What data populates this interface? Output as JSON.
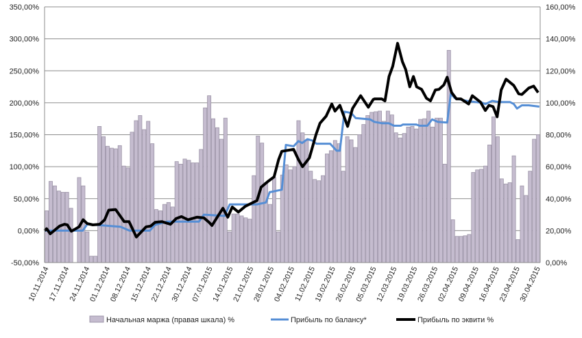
{
  "chart_data": {
    "type": "bar+line",
    "title": "",
    "grid": true,
    "legend_position": "bottom",
    "left_axis": {
      "min": -50,
      "max": 350,
      "step": 50,
      "ticks": [
        "-50,00%",
        "0,00%",
        "50,00%",
        "100,00%",
        "150,00%",
        "200,00%",
        "250,00%",
        "300,00%",
        "350,00%"
      ]
    },
    "right_axis": {
      "min": 0,
      "max": 160,
      "step": 20,
      "ticks": [
        "0,00%",
        "20,00%",
        "40,00%",
        "60,00%",
        "80,00%",
        "100,00%",
        "120,00%",
        "140,00%",
        "160,00%"
      ]
    },
    "x_tick_labels": [
      "10.11.2014",
      "17.11.2014",
      "24.11.2014",
      "01.12.2014",
      "08.12.2014",
      "15.12.2014",
      "22.12.2014",
      "30.12.2014",
      "07.01.2015",
      "14.01.2015",
      "21.01.2015",
      "28.01.2015",
      "04.02.2015",
      "11.02.2015",
      "19.02.2015",
      "26.02.2015",
      "05.03.2015",
      "12.03.2015",
      "19.03.2015",
      "26.03.2015",
      "02.04.2015",
      "09.04.2015",
      "16.04.2015",
      "23.04.2015",
      "30.04.2015"
    ],
    "series": [
      {
        "name": "Начальная маржа (правая шкала) %",
        "type": "bar",
        "axis": "right",
        "color": "#c5bccf",
        "values": [
          32.4,
          50.8,
          48,
          44.8,
          44,
          44,
          34,
          0,
          53.2,
          48,
          19.2,
          4,
          4,
          85.2,
          78.8,
          72.8,
          71.6,
          71.2,
          73.2,
          60.4,
          59.2,
          81.6,
          88.8,
          92,
          83.2,
          88.4,
          74.4,
          33.2,
          32.4,
          36.4,
          37.6,
          34.8,
          63.2,
          61.6,
          64.8,
          64,
          62.4,
          62.4,
          70.8,
          96.8,
          104.4,
          90,
          84.4,
          77.2,
          90.4,
          19.2,
          30.4,
          30.4,
          29.2,
          28,
          27.2,
          54.4,
          79.2,
          74.8,
          50,
          36.4,
          53.2,
          19.2,
          54.8,
          61.2,
          58,
          60,
          88.8,
          81.2,
          76.4,
          57.2,
          52,
          51.2,
          54.4,
          68,
          70,
          76.4,
          74.4,
          57.2,
          78.8,
          76.8,
          72,
          80,
          86.4,
          92,
          94,
          94.4,
          94.8,
          88.4,
          94.8,
          92.4,
          81.2,
          78,
          80.8,
          84.8,
          85.2,
          83.6,
          89.6,
          90,
          94.8,
          84.8,
          90.4,
          90.4,
          61.6,
          132.8,
          26.8,
          16.4,
          16.4,
          16.8,
          17.6,
          56.4,
          58,
          58.4,
          60.4,
          73.6,
          91.2,
          78.8,
          52.4,
          49.2,
          50,
          66.8,
          14.4,
          48,
          42,
          57.2,
          77.2,
          80
        ]
      },
      {
        "name": "Прибыль по балансу*",
        "type": "line",
        "axis": "left",
        "color": "#558ed5",
        "points": [
          [
            -0.5,
            0
          ],
          [
            8.9,
            0
          ],
          [
            10,
            10
          ],
          [
            18.2,
            6
          ],
          [
            20.4,
            0
          ],
          [
            25.4,
            0
          ],
          [
            26.7,
            9
          ],
          [
            29.6,
            14
          ],
          [
            37.5,
            14
          ],
          [
            38.7,
            25
          ],
          [
            43.8,
            23
          ],
          [
            45.1,
            41
          ],
          [
            51.8,
            41
          ],
          [
            54,
            44
          ],
          [
            54.9,
            60
          ],
          [
            57.9,
            64
          ],
          [
            58.9,
            134
          ],
          [
            60.8,
            132
          ],
          [
            62,
            140
          ],
          [
            62.9,
            137
          ],
          [
            64.2,
            143
          ],
          [
            65.4,
            141
          ],
          [
            66.4,
            136
          ],
          [
            69.8,
            136
          ],
          [
            71.4,
            125
          ],
          [
            72.2,
            125
          ],
          [
            73.3,
            186
          ],
          [
            75,
            184
          ],
          [
            76.1,
            176
          ],
          [
            79.6,
            174
          ],
          [
            80.7,
            170
          ],
          [
            82.5,
            168
          ],
          [
            84.2,
            168
          ],
          [
            85.5,
            164
          ],
          [
            87.2,
            164
          ],
          [
            87.7,
            166
          ],
          [
            91,
            166
          ],
          [
            91.8,
            164
          ],
          [
            93.7,
            164
          ],
          [
            94.9,
            174
          ],
          [
            96.3,
            170
          ],
          [
            98.6,
            169
          ],
          [
            99.5,
            214
          ],
          [
            100.5,
            207
          ],
          [
            103.4,
            203
          ],
          [
            105.6,
            201
          ],
          [
            107.3,
            200
          ],
          [
            108,
            198
          ],
          [
            109.7,
            203
          ],
          [
            111.4,
            201
          ],
          [
            114.1,
            201
          ],
          [
            115,
            198
          ],
          [
            115.8,
            191
          ],
          [
            117,
            196
          ],
          [
            118.7,
            196
          ],
          [
            121.3,
            194
          ]
        ]
      },
      {
        "name": "Прибыль по эквити %",
        "type": "line",
        "axis": "left",
        "color": "#000000",
        "points": [
          [
            -0.5,
            0
          ],
          [
            0,
            3
          ],
          [
            0.9,
            -5
          ],
          [
            3.2,
            7
          ],
          [
            4.4,
            10
          ],
          [
            5.1,
            9
          ],
          [
            6.1,
            -1
          ],
          [
            8,
            6
          ],
          [
            9,
            17
          ],
          [
            10,
            11
          ],
          [
            11.4,
            9
          ],
          [
            13.1,
            10
          ],
          [
            14.3,
            17
          ],
          [
            15.3,
            32
          ],
          [
            17,
            33
          ],
          [
            19.1,
            14
          ],
          [
            20.3,
            14
          ],
          [
            22.1,
            -10
          ],
          [
            24.5,
            6
          ],
          [
            25.6,
            7
          ],
          [
            26.7,
            13
          ],
          [
            28.4,
            14
          ],
          [
            30.5,
            10
          ],
          [
            31.9,
            19
          ],
          [
            33.2,
            22
          ],
          [
            34.8,
            17
          ],
          [
            37,
            21
          ],
          [
            38.7,
            20
          ],
          [
            40,
            13
          ],
          [
            40.7,
            8
          ],
          [
            43.4,
            35
          ],
          [
            44.6,
            21
          ],
          [
            45.7,
            37
          ],
          [
            47.2,
            29
          ],
          [
            48.9,
            38
          ],
          [
            51.8,
            47
          ],
          [
            52.8,
            68
          ],
          [
            54.5,
            77
          ],
          [
            56,
            84
          ],
          [
            57.1,
            111
          ],
          [
            57.9,
            124
          ],
          [
            60.8,
            127
          ],
          [
            62,
            111
          ],
          [
            63,
            100
          ],
          [
            64.7,
            114
          ],
          [
            66.3,
            150
          ],
          [
            67.3,
            168
          ],
          [
            68.8,
            179
          ],
          [
            70.2,
            198
          ],
          [
            71,
            187
          ],
          [
            72.2,
            196
          ],
          [
            74.1,
            163
          ],
          [
            75.3,
            191
          ],
          [
            77.3,
            211
          ],
          [
            79.2,
            193
          ],
          [
            80.4,
            205
          ],
          [
            80.7,
            206
          ],
          [
            82.5,
            206
          ],
          [
            83.3,
            203
          ],
          [
            84.3,
            241
          ],
          [
            85.2,
            257
          ],
          [
            86.4,
            293
          ],
          [
            87.6,
            264
          ],
          [
            88.4,
            252
          ],
          [
            89.4,
            225
          ],
          [
            90.3,
            241
          ],
          [
            91.1,
            225
          ],
          [
            92.3,
            221
          ],
          [
            93.5,
            207
          ],
          [
            94.5,
            203
          ],
          [
            95.7,
            220
          ],
          [
            96.6,
            221
          ],
          [
            97.8,
            228
          ],
          [
            98.6,
            240
          ],
          [
            99.7,
            216
          ],
          [
            100.9,
            206
          ],
          [
            102,
            206
          ],
          [
            103.9,
            198
          ],
          [
            104.8,
            211
          ],
          [
            106,
            205
          ],
          [
            106.8,
            201
          ],
          [
            108,
            188
          ],
          [
            108.9,
            196
          ],
          [
            109.9,
            194
          ],
          [
            110.9,
            178
          ],
          [
            111.9,
            220
          ],
          [
            113.1,
            237
          ],
          [
            115,
            227
          ],
          [
            116.2,
            214
          ],
          [
            117,
            213
          ],
          [
            118.7,
            223
          ],
          [
            119.9,
            226
          ],
          [
            121,
            216
          ]
        ]
      }
    ]
  }
}
